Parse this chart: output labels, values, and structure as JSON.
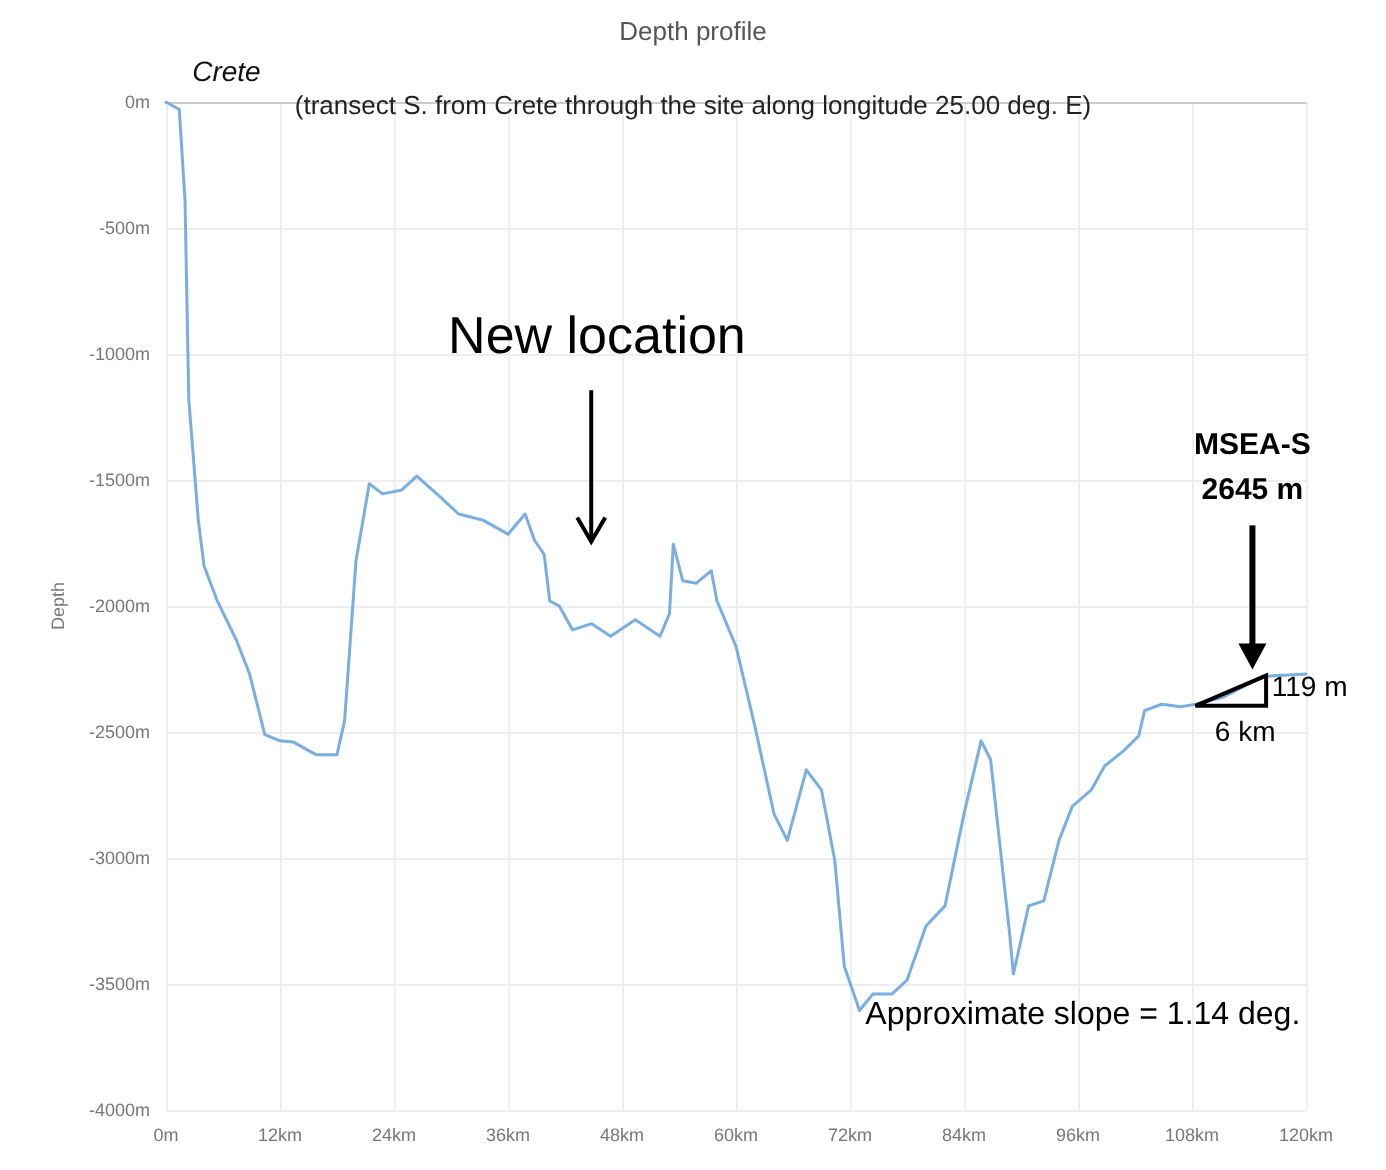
{
  "chart_data": {
    "type": "line",
    "title": "Depth profile",
    "subtitle": "(transect S. from Crete through the site along longitude 25.00 deg. E)",
    "ylabel": "Depth",
    "x": [
      0,
      1.4,
      2,
      2.4,
      3.4,
      4,
      5.4,
      7.4,
      8.8,
      10.4,
      12,
      13.4,
      15.8,
      18,
      18.8,
      20,
      21.4,
      22.8,
      24.8,
      26.4,
      28.8,
      30.8,
      33.4,
      36,
      37.8,
      38.8,
      39.8,
      40.4,
      41.4,
      42.8,
      44.8,
      46.8,
      49.4,
      52,
      53,
      53.4,
      54.4,
      55.8,
      57.4,
      58,
      60,
      62,
      64,
      65.4,
      67.4,
      69,
      70.4,
      71.4,
      73,
      74.4,
      76.4,
      78,
      80,
      82,
      84,
      85.8,
      86.8,
      88.8,
      89.2,
      90.8,
      92.4,
      94,
      95.4,
      97.4,
      98.8,
      100.8,
      102.4,
      103,
      104.8,
      106.8,
      108.4,
      111.4,
      115.4,
      120
    ],
    "series": [
      {
        "color": "#7aaee0",
        "values": [
          0,
          -30,
          -390,
          -1180,
          -1660,
          -1840,
          -1980,
          -2135,
          -2270,
          -2510,
          -2535,
          -2540,
          -2590,
          -2590,
          -2455,
          -1820,
          -1515,
          -1555,
          -1540,
          -1485,
          -1565,
          -1635,
          -1660,
          -1715,
          -1635,
          -1740,
          -1795,
          -1980,
          -2000,
          -2095,
          -2070,
          -2120,
          -2055,
          -2120,
          -2030,
          -1755,
          -1900,
          -1910,
          -1860,
          -1980,
          -2160,
          -2480,
          -2825,
          -2930,
          -2650,
          -2730,
          -3010,
          -3430,
          -3605,
          -3540,
          -3540,
          -3485,
          -3270,
          -3190,
          -2825,
          -2535,
          -2610,
          -3300,
          -3460,
          -3190,
          -3170,
          -2930,
          -2795,
          -2730,
          -2635,
          -2575,
          -2515,
          -2415,
          -2390,
          -2400,
          -2390,
          -2360,
          -2280,
          -2270
        ]
      }
    ],
    "xlim": [
      0,
      120
    ],
    "xticks": [
      {
        "value": 0,
        "label": "0m"
      },
      {
        "value": 12,
        "label": "12km"
      },
      {
        "value": 24,
        "label": "24km"
      },
      {
        "value": 36,
        "label": "36km"
      },
      {
        "value": 48,
        "label": "48km"
      },
      {
        "value": 60,
        "label": "60km"
      },
      {
        "value": 72,
        "label": "72km"
      },
      {
        "value": 84,
        "label": "84km"
      },
      {
        "value": 96,
        "label": "96km"
      },
      {
        "value": 108,
        "label": "108km"
      },
      {
        "value": 120,
        "label": "120km"
      }
    ],
    "ylim": [
      -4000,
      0
    ],
    "yticks": [
      {
        "value": -4000,
        "label": "-4000m"
      },
      {
        "value": -3500,
        "label": "-3500m"
      },
      {
        "value": -3000,
        "label": "-3000m"
      },
      {
        "value": -2500,
        "label": "-2500m"
      },
      {
        "value": -2000,
        "label": "-2000m"
      },
      {
        "value": -1500,
        "label": "-1500m"
      },
      {
        "value": -1000,
        "label": "-1000m"
      },
      {
        "value": -500,
        "label": "-500m"
      },
      {
        "value": 0,
        "label": "0m"
      }
    ],
    "grid": true,
    "marker": "none",
    "line_style": "solid",
    "annotations": [
      "Crete",
      "New location",
      "MSEA-S",
      "2645 m",
      "6 km",
      "119 m",
      "Approximate slope = 1.14 deg."
    ]
  }
}
